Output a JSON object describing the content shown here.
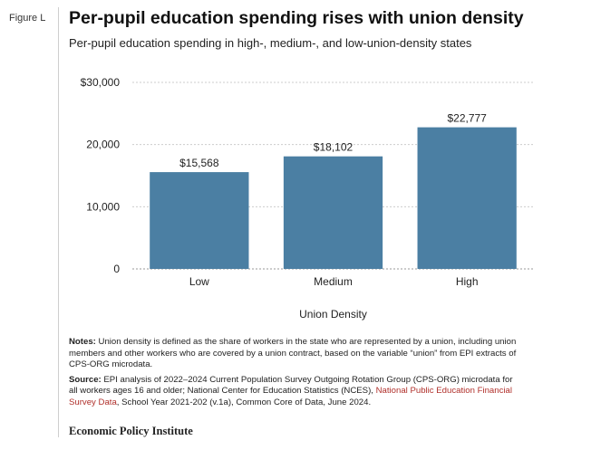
{
  "figure_label": "Figure L",
  "title": "Per-pupil education spending rises with union density",
  "subtitle": "Per-pupil education spending in high-, medium-, and low-union-density states",
  "chart_data": {
    "type": "bar",
    "categories": [
      "Low",
      "Medium",
      "High"
    ],
    "values": [
      15568,
      18102,
      22777
    ],
    "value_labels": [
      "$15,568",
      "$18,102",
      "$22,777"
    ],
    "ylim": [
      0,
      30000
    ],
    "yticks": [
      0,
      10000,
      20000,
      30000
    ],
    "ytick_labels": [
      "0",
      "10,000",
      "20,000",
      "$30,000"
    ],
    "xlabel": "Union Density",
    "ylabel": "",
    "grid": true,
    "bar_color": "#4b7fa3"
  },
  "notes": {
    "notes_heading": "Notes:",
    "notes_text": "Union density is defined as the share of workers in the state who are represented by a union, including union members and other workers who are covered by a union contract, based on the variable “union” from EPI extracts of CPS-ORG microdata.",
    "source_heading": "Source:",
    "source_text_1": "EPI analysis of 2022–2024 Current Population Survey Outgoing Rotation Group (CPS-ORG) microdata for all workers ages 16 and older; National Center for Education Statistics (NCES), ",
    "source_link": "National Public Education Financial Survey Data",
    "source_text_2": ", School Year 2021-202 (v.1a), Common Core of Data, June 2024."
  },
  "footer": "Economic Policy Institute",
  "colors": {
    "link": "#b0302b",
    "bar": "#4b7fa3",
    "gridline": "#cccccc"
  }
}
